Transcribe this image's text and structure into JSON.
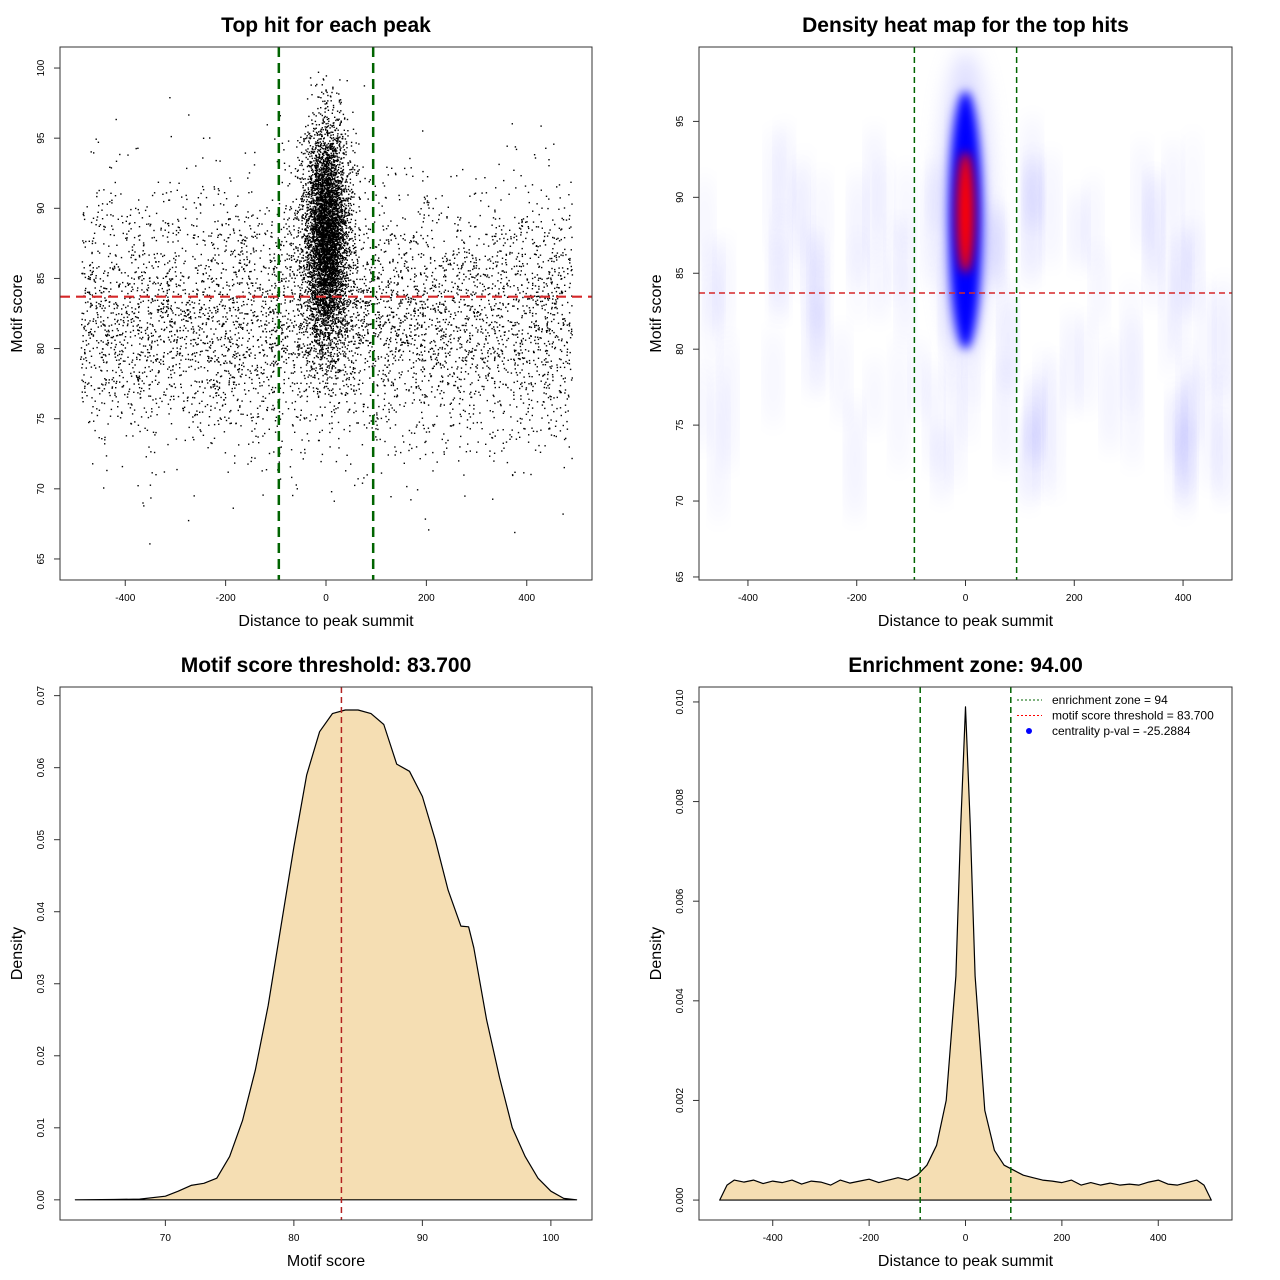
{
  "chart_data": [
    {
      "type": "scatter",
      "title": "Top hit for each peak",
      "xlabel": "Distance to peak summit",
      "ylabel": "Motif score",
      "xticks": [
        -400,
        -200,
        0,
        200,
        400
      ],
      "yticks": [
        65,
        70,
        75,
        80,
        85,
        90,
        95,
        100
      ],
      "xlim": [
        -530,
        530
      ],
      "ylim": [
        63.5,
        101.5
      ],
      "hlines": [
        {
          "y": 83.7,
          "color": "#d62728",
          "style": "dashed"
        }
      ],
      "vlines": [
        {
          "x": -94,
          "color": "#006400",
          "style": "dashed"
        },
        {
          "x": 94,
          "color": "#006400",
          "style": "dashed"
        }
      ],
      "point_color": "#000000",
      "distribution": {
        "background": {
          "x_range": [
            -490,
            490
          ],
          "y_mean": 82,
          "y_sd": 4.5
        },
        "central": {
          "x_mean": 0,
          "x_sd": 22,
          "y_mean": 88,
          "y_sd": 4
        }
      }
    },
    {
      "type": "heatmap",
      "title": "Density heat map for the top hits",
      "xlabel": "Distance to peak summit",
      "ylabel": "Motif score",
      "xticks": [
        -400,
        -200,
        0,
        200,
        400
      ],
      "yticks": [
        65,
        70,
        75,
        80,
        85,
        90,
        95
      ],
      "xlim": [
        -490,
        490
      ],
      "ylim": [
        64.8,
        99.9
      ],
      "colors": [
        "#ffffff",
        "#0000ff",
        "#ff0000"
      ],
      "hlines": [
        {
          "y": 83.7,
          "color": "#d62728",
          "style": "dashed"
        }
      ],
      "vlines": [
        {
          "x": -94,
          "color": "#006400",
          "style": "dashed"
        },
        {
          "x": 94,
          "color": "#006400",
          "style": "dashed"
        }
      ],
      "hotspot": {
        "x": 0,
        "y_range": [
          80,
          97
        ],
        "core_y_range": [
          85,
          93
        ]
      }
    },
    {
      "type": "area",
      "title": "Motif score threshold: 83.700",
      "xlabel": "Motif score",
      "ylabel": "Density",
      "xticks": [
        70,
        80,
        90,
        100
      ],
      "yticks": [
        0.0,
        0.01,
        0.02,
        0.03,
        0.04,
        0.05,
        0.06,
        0.07
      ],
      "xlim": [
        61.8,
        103.2
      ],
      "ylim": [
        -0.0028,
        0.0712
      ],
      "fill": "#f5deb3",
      "vlines": [
        {
          "x": 83.7,
          "color": "#b22222",
          "style": "dashed"
        }
      ],
      "x": [
        63,
        66,
        68,
        70,
        71,
        72,
        73,
        74,
        75,
        76,
        77,
        78,
        79,
        80,
        81,
        82,
        83,
        84,
        85,
        86,
        87,
        88,
        89,
        90,
        91,
        92,
        93,
        93.6,
        94,
        95,
        96,
        97,
        98,
        99,
        100,
        101,
        102
      ],
      "y": [
        0,
        5e-05,
        0.0001,
        0.0005,
        0.0012,
        0.002,
        0.0023,
        0.003,
        0.006,
        0.011,
        0.018,
        0.027,
        0.038,
        0.049,
        0.059,
        0.065,
        0.0675,
        0.068,
        0.068,
        0.0675,
        0.066,
        0.0605,
        0.0595,
        0.056,
        0.05,
        0.043,
        0.038,
        0.0379,
        0.035,
        0.025,
        0.017,
        0.01,
        0.006,
        0.003,
        0.0012,
        0.0002,
        0
      ]
    },
    {
      "type": "area",
      "title": "Enrichment zone: 94.00",
      "xlabel": "Distance to peak summit",
      "ylabel": "Density",
      "xticks": [
        -400,
        -200,
        0,
        200,
        400
      ],
      "yticks": [
        0.0,
        0.002,
        0.004,
        0.006,
        0.008,
        0.01
      ],
      "xlim": [
        -553,
        553
      ],
      "ylim": [
        -0.0004,
        0.0103
      ],
      "fill": "#f5deb3",
      "vlines": [
        {
          "x": -94,
          "color": "#006400",
          "style": "dashed"
        },
        {
          "x": 94,
          "color": "#006400",
          "style": "dashed"
        }
      ],
      "x": [
        -510,
        -495,
        -480,
        -460,
        -440,
        -420,
        -400,
        -380,
        -360,
        -340,
        -320,
        -300,
        -280,
        -260,
        -240,
        -220,
        -200,
        -180,
        -160,
        -140,
        -120,
        -100,
        -80,
        -60,
        -40,
        -20,
        -10,
        0,
        10,
        20,
        40,
        60,
        80,
        100,
        120,
        140,
        160,
        180,
        200,
        220,
        240,
        260,
        280,
        300,
        320,
        340,
        360,
        380,
        400,
        420,
        440,
        460,
        480,
        495,
        510
      ],
      "y": [
        0,
        0.0003,
        0.0004,
        0.00036,
        0.0004,
        0.00033,
        0.00038,
        0.00035,
        0.0004,
        0.00032,
        0.00038,
        0.00036,
        0.0003,
        0.0004,
        0.00034,
        0.00038,
        0.00042,
        0.00035,
        0.0004,
        0.00045,
        0.0004,
        0.0005,
        0.0007,
        0.0011,
        0.002,
        0.0045,
        0.0075,
        0.0099,
        0.0075,
        0.0045,
        0.0018,
        0.001,
        0.0007,
        0.0006,
        0.0005,
        0.00045,
        0.0004,
        0.00038,
        0.00035,
        0.0004,
        0.0003,
        0.00035,
        0.0003,
        0.00034,
        0.0003,
        0.00032,
        0.0003,
        0.00036,
        0.0004,
        0.00032,
        0.0003,
        0.00035,
        0.0004,
        0.0003,
        0
      ],
      "legend": {
        "position": "top-right",
        "entries": [
          {
            "label": "enrichment zone = 94",
            "color": "#006400",
            "style": "dotted-line"
          },
          {
            "label": "motif score threshold = 83.700",
            "color": "#ff0000",
            "style": "dotted-line"
          },
          {
            "label": "centrality p-val = -25.2884",
            "color": "#0000ff",
            "style": "point"
          }
        ]
      }
    }
  ]
}
